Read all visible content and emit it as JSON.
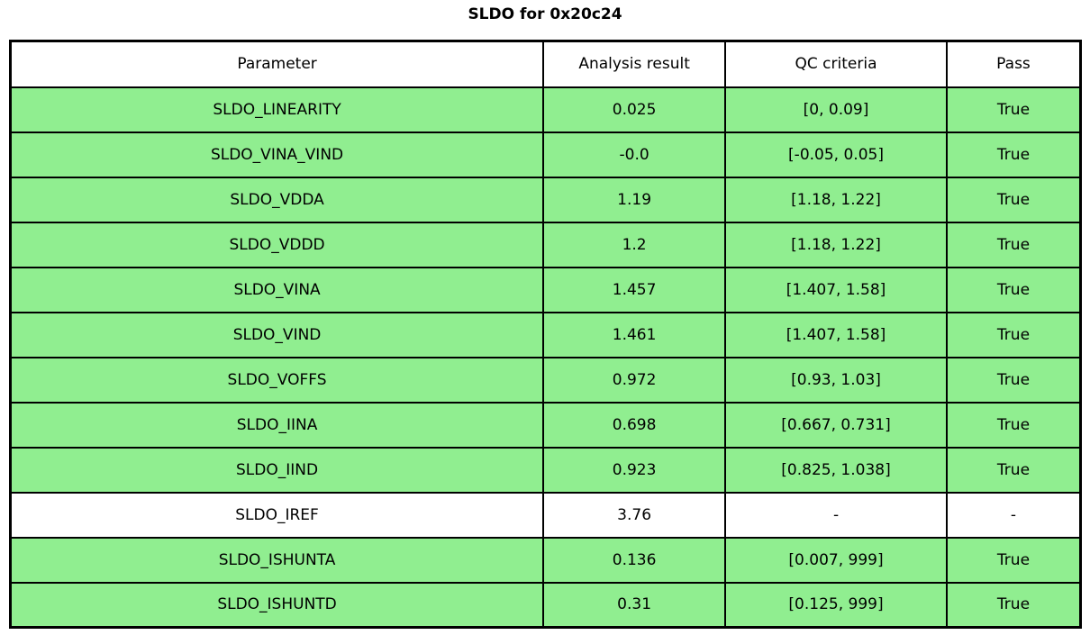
{
  "title": "SLDO for 0x20c24",
  "chart_data": {
    "type": "table",
    "title": "SLDO for 0x20c24",
    "columns": [
      "Parameter",
      "Analysis result",
      "QC criteria",
      "Pass"
    ],
    "column_keys": [
      "parameter",
      "analysis_result",
      "qc_criteria",
      "pass"
    ],
    "rows": [
      {
        "parameter": "SLDO_LINEARITY",
        "analysis_result": "0.025",
        "qc_criteria": "[0, 0.09]",
        "pass": "True",
        "pass_highlight": true
      },
      {
        "parameter": "SLDO_VINA_VIND",
        "analysis_result": "-0.0",
        "qc_criteria": "[-0.05, 0.05]",
        "pass": "True",
        "pass_highlight": true
      },
      {
        "parameter": "SLDO_VDDA",
        "analysis_result": "1.19",
        "qc_criteria": "[1.18, 1.22]",
        "pass": "True",
        "pass_highlight": true
      },
      {
        "parameter": "SLDO_VDDD",
        "analysis_result": "1.2",
        "qc_criteria": "[1.18, 1.22]",
        "pass": "True",
        "pass_highlight": true
      },
      {
        "parameter": "SLDO_VINA",
        "analysis_result": "1.457",
        "qc_criteria": "[1.407, 1.58]",
        "pass": "True",
        "pass_highlight": true
      },
      {
        "parameter": "SLDO_VIND",
        "analysis_result": "1.461",
        "qc_criteria": "[1.407, 1.58]",
        "pass": "True",
        "pass_highlight": true
      },
      {
        "parameter": "SLDO_VOFFS",
        "analysis_result": "0.972",
        "qc_criteria": "[0.93, 1.03]",
        "pass": "True",
        "pass_highlight": true
      },
      {
        "parameter": "SLDO_IINA",
        "analysis_result": "0.698",
        "qc_criteria": "[0.667, 0.731]",
        "pass": "True",
        "pass_highlight": true
      },
      {
        "parameter": "SLDO_IIND",
        "analysis_result": "0.923",
        "qc_criteria": "[0.825, 1.038]",
        "pass": "True",
        "pass_highlight": true
      },
      {
        "parameter": "SLDO_IREF",
        "analysis_result": "3.76",
        "qc_criteria": "-",
        "pass": "-",
        "pass_highlight": false
      },
      {
        "parameter": "SLDO_ISHUNTA",
        "analysis_result": "0.136",
        "qc_criteria": "[0.007, 999]",
        "pass": "True",
        "pass_highlight": true
      },
      {
        "parameter": "SLDO_ISHUNTD",
        "analysis_result": "0.31",
        "qc_criteria": "[0.125, 999]",
        "pass": "True",
        "pass_highlight": true
      }
    ],
    "colors": {
      "pass_row_bg": "#90ee90",
      "neutral_row_bg": "#ffffff",
      "border": "#000000",
      "text": "#000000"
    },
    "layout": {
      "column_widths_pct": [
        49.8,
        17.0,
        20.7,
        12.5
      ],
      "legend": "none",
      "grid": "full-borders"
    }
  }
}
